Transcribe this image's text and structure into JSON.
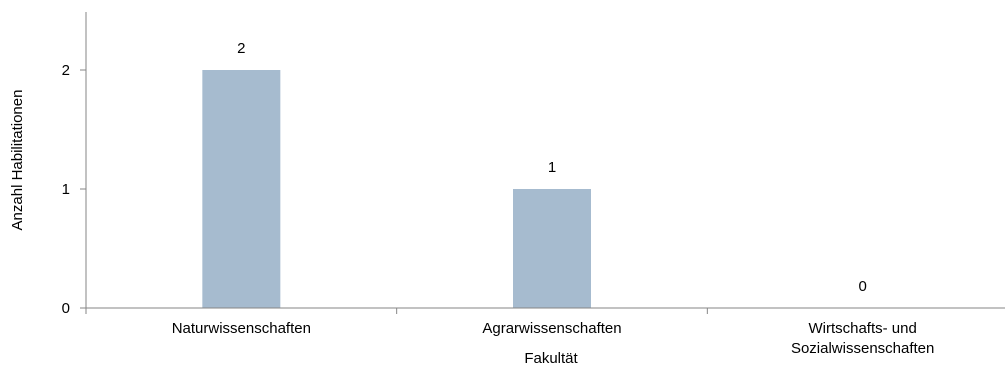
{
  "chart_data": {
    "type": "bar",
    "categories": [
      [
        "Naturwissenschaften"
      ],
      [
        "Agrarwissenschaften"
      ],
      [
        "Wirtschafts- und",
        "Sozialwissenschaften"
      ]
    ],
    "values": [
      2,
      1,
      0
    ],
    "data_labels": [
      "2",
      "1",
      "0"
    ],
    "xlabel": "Fakultät",
    "ylabel": "Anzahl Habilitationen",
    "ylim": [
      0,
      2.5
    ],
    "yticks": [
      "0",
      "1",
      "2"
    ],
    "grid": false,
    "bar_color": "#a6bbcf",
    "axis_color": "#868686"
  }
}
